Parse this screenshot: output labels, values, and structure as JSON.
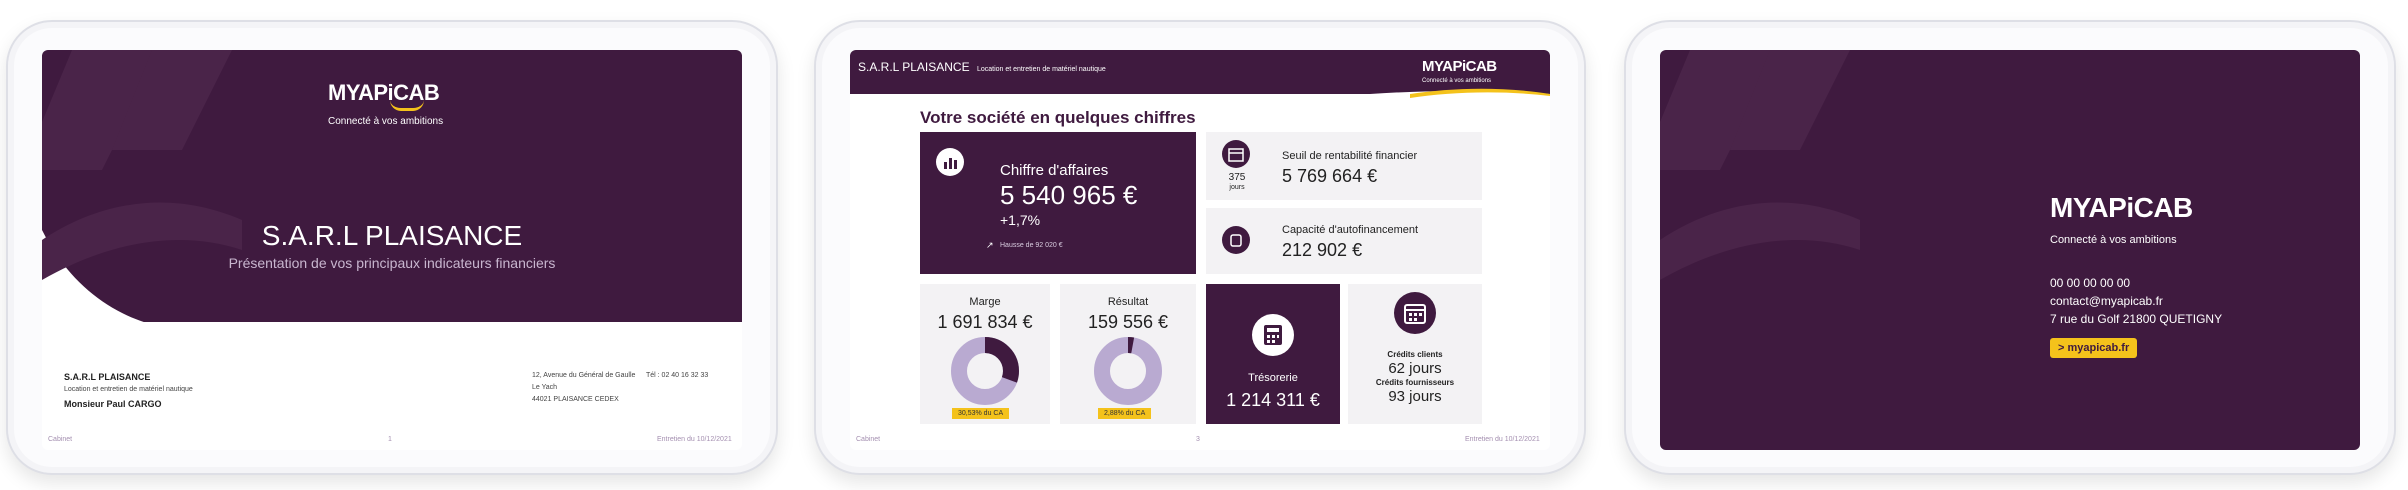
{
  "colors": {
    "brand": "#3f1a3f",
    "accent": "#f4c21b",
    "light": "#f3f2f4"
  },
  "slide1": {
    "logo": "MYAPiCAB",
    "tagline": "Connecté à vos ambitions",
    "company_title": "S.A.R.L  PLAISANCE",
    "subtitle": "Présentation de vos principaux indicateurs financiers",
    "company_name": "S.A.R.L PLAISANCE",
    "activity": "Location et entretien de matériel nautique",
    "contact": "Monsieur Paul CARGO",
    "address_line1": "12, Avenue du Général de Gaulle",
    "phone": "Tél : 02 40 16 32 33",
    "address_line2": "Le Yach",
    "address_line3": "44021 PLAISANCE CEDEX",
    "footer_left": "Cabinet",
    "footer_center": "1",
    "footer_right": "Entretien du 10/12/2021"
  },
  "slide2": {
    "header_company": "S.A.R.L PLAISANCE",
    "header_activity": "Location et entretien de matériel nautique",
    "logo": "MYAPiCAB",
    "tagline": "Connecté à vos ambitions",
    "section_title": "Votre société en quelques chiffres",
    "ca_label": "Chiffre d'affaires",
    "ca_value": "5 540 965 €",
    "ca_change": "+1,7%",
    "ca_note": "Hausse de 92 020 €",
    "seuil_days": "375",
    "seuil_days_unit": "jours",
    "seuil_label": "Seuil de rentabilité financier",
    "seuil_value": "5 769 664 €",
    "caf_label": "Capacité d'autofinancement",
    "caf_value": "212 902 €",
    "marge_label": "Marge",
    "marge_value": "1 691 834 €",
    "marge_pct": "30,53% du CA",
    "marge_fraction": 0.3053,
    "resultat_label": "Résultat",
    "resultat_value": "159 556 €",
    "resultat_pct": "2,88% du CA",
    "resultat_fraction": 0.0288,
    "tresorerie_label": "Trésorerie",
    "tresorerie_value": "1 214 311 €",
    "clients_label": "Crédits clients",
    "clients_value": "62 jours",
    "fournisseurs_label": "Crédits fournisseurs",
    "fournisseurs_value": "93 jours",
    "footer_left": "Cabinet",
    "footer_center": "3",
    "footer_right": "Entretien du 10/12/2021"
  },
  "slide3": {
    "logo": "MYAPiCAB",
    "tagline": "Connecté à vos ambitions",
    "phone": "00 00 00 00 00",
    "email": "contact@myapicab.fr",
    "address": "7 rue du Golf 21800 QUETIGNY",
    "button": "> myapicab.fr"
  }
}
